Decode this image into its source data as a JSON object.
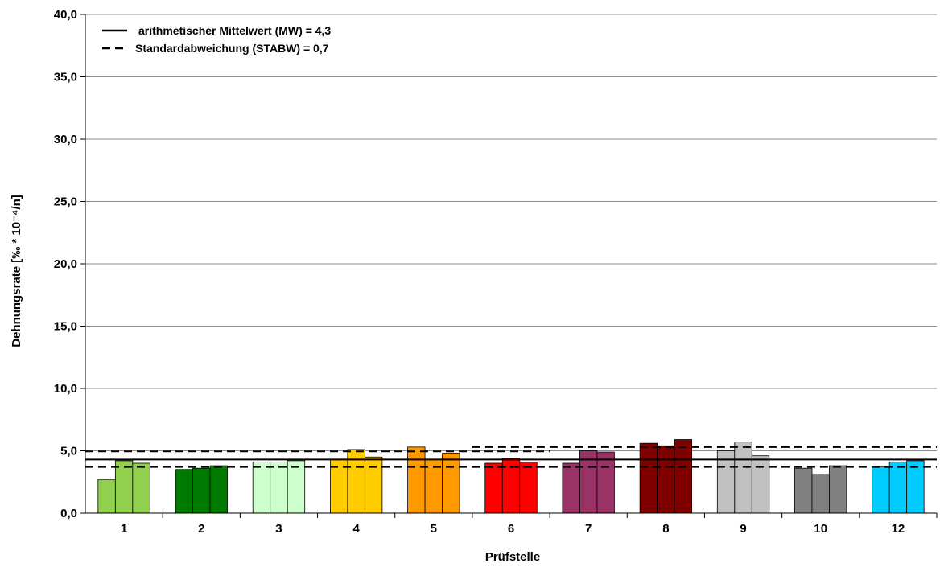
{
  "chart_data": {
    "type": "bar",
    "title": "",
    "xlabel": "Prüfstelle",
    "ylabel": "Dehnungsrate [‰ * 10⁻⁴/n]",
    "ylim": [
      0,
      40
    ],
    "yticks": [
      "0,0",
      "5,0",
      "10,0",
      "15,0",
      "20,0",
      "25,0",
      "30,0",
      "35,0",
      "40,0"
    ],
    "grid": true,
    "legend_position": "top-left",
    "categories": [
      "1",
      "2",
      "3",
      "4",
      "5",
      "6",
      "7",
      "8",
      "9",
      "10",
      "12"
    ],
    "groups": [
      {
        "label": "1",
        "color": "#92D050",
        "values": [
          2.7,
          4.2,
          4.0
        ]
      },
      {
        "label": "2",
        "color": "#007A00",
        "values": [
          3.5,
          3.6,
          3.8
        ]
      },
      {
        "label": "3",
        "color": "#CCFFCC",
        "values": [
          4.1,
          4.1,
          4.2
        ]
      },
      {
        "label": "4",
        "color": "#FFCC00",
        "values": [
          4.3,
          5.1,
          4.5
        ]
      },
      {
        "label": "5",
        "color": "#FF9900",
        "values": [
          5.3,
          4.3,
          4.8
        ]
      },
      {
        "label": "6",
        "color": "#FF0000",
        "values": [
          4.0,
          4.4,
          4.1
        ]
      },
      {
        "label": "7",
        "color": "#993366",
        "values": [
          4.0,
          5.0,
          4.9
        ]
      },
      {
        "label": "8",
        "color": "#800000",
        "values": [
          5.6,
          5.4,
          5.9
        ]
      },
      {
        "label": "9",
        "color": "#C0C0C0",
        "values": [
          5.0,
          5.7,
          4.6
        ]
      },
      {
        "label": "10",
        "color": "#808080",
        "values": [
          3.6,
          3.1,
          3.8
        ]
      },
      {
        "label": "12",
        "color": "#00CCFF",
        "values": [
          3.7,
          4.1,
          4.2
        ]
      }
    ],
    "reference_lines": {
      "mean": 4.3,
      "std_segments": [
        {
          "from_group": 0,
          "to_group": 5,
          "upper": 4.95,
          "lower": 3.7
        },
        {
          "from_group": 5,
          "to_group": 10,
          "upper": 5.3,
          "lower": 3.7
        }
      ]
    },
    "legend": [
      {
        "style": "solid",
        "label": "arithmetischer Mittelwert (MW) = 4,3"
      },
      {
        "style": "dashed",
        "label": "Standardabweichung (STABW) = 0,7"
      }
    ]
  }
}
